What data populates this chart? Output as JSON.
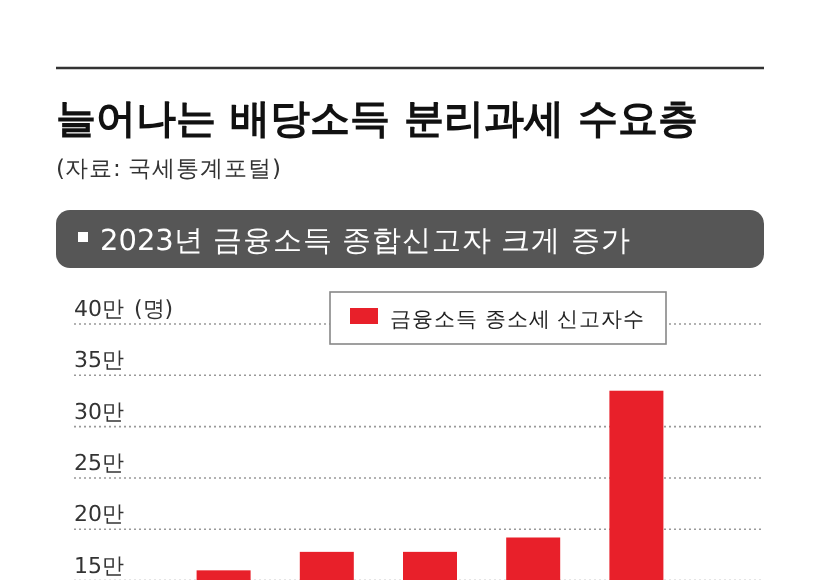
{
  "chart_data": {
    "type": "bar",
    "title": "늘어나는 배당소득 분리과세 수요층",
    "subtitle": "(자료: 국세통계포털)",
    "annotations": [
      "2023년 금융소득 종합신고자 크게 증가"
    ],
    "categories": [
      null,
      null,
      null,
      null,
      null
    ],
    "series": [
      {
        "name": "금융소득 종소세 신고자수",
        "color": "#e8202a",
        "values": [
          16.0,
          17.8,
          17.8,
          19.2,
          33.5
        ]
      }
    ],
    "ylabel": "(명)",
    "ylim": [
      13.5,
      40
    ],
    "yticks": [
      {
        "value": 15,
        "label": "15만"
      },
      {
        "value": 20,
        "label": "20만"
      },
      {
        "value": 25,
        "label": "25만"
      },
      {
        "value": 30,
        "label": "30만"
      },
      {
        "value": 35,
        "label": "35만"
      },
      {
        "value": 40,
        "label": "40만"
      }
    ],
    "grid": "y",
    "legend": "top"
  }
}
